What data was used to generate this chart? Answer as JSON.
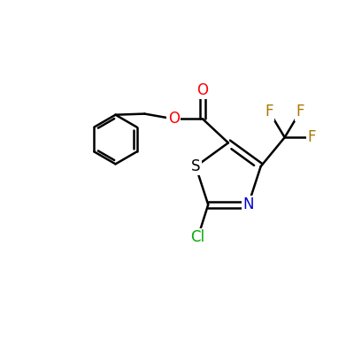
{
  "background_color": "#ffffff",
  "bond_color": "#000000",
  "bond_width": 1.8,
  "atom_colors": {
    "O": "#ff0000",
    "N": "#0000cc",
    "S": "#000000",
    "Cl": "#00aa00",
    "F": "#aa7700",
    "C": "#000000"
  },
  "font_size": 12,
  "figsize": [
    4.0,
    4.0
  ],
  "dpi": 100,
  "xlim": [
    0,
    10
  ],
  "ylim": [
    0,
    10
  ]
}
